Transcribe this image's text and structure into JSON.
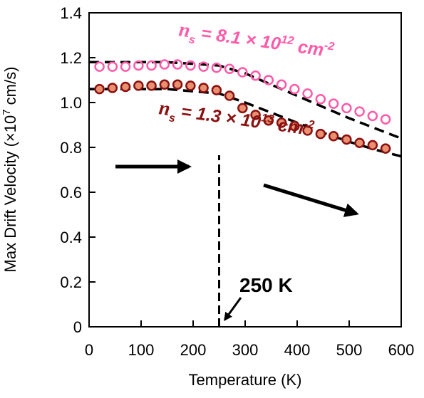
{
  "chart_data": {
    "type": "scatter",
    "xlabel": "Temperature (K)",
    "ylabel": [
      "Max Drift Velocity (×10",
      "7",
      " cm/s)"
    ],
    "xlim": [
      0,
      600
    ],
    "xticks": [
      0,
      100,
      200,
      300,
      400,
      500,
      600
    ],
    "ylim": [
      0,
      1.4
    ],
    "yticks": [
      0,
      0.2,
      0.4,
      0.6,
      0.8,
      {
        "value": 1,
        "label": "1.0"
      },
      1.2,
      1.4
    ],
    "series": [
      {
        "name": [
          "n",
          "s",
          " = 8.1 × 10",
          "12",
          " cm",
          "-2"
        ],
        "color": "#ff5aa8",
        "fill": "none",
        "x": [
          20,
          45,
          70,
          95,
          120,
          145,
          170,
          195,
          220,
          245,
          270,
          295,
          320,
          345,
          370,
          395,
          420,
          445,
          470,
          495,
          520,
          545,
          570
        ],
        "values": [
          1.16,
          1.16,
          1.16,
          1.165,
          1.165,
          1.17,
          1.17,
          1.165,
          1.16,
          1.155,
          1.15,
          1.135,
          1.12,
          1.1,
          1.08,
          1.06,
          1.04,
          1.015,
          0.995,
          0.975,
          0.96,
          0.94,
          0.925
        ]
      },
      {
        "name": [
          "n",
          "s",
          " = 1.3 × 10",
          "13",
          " cm",
          "-2"
        ],
        "color": "#8b1010",
        "fill": "#e89070",
        "x": [
          20,
          45,
          70,
          95,
          120,
          145,
          170,
          195,
          220,
          245,
          270,
          295,
          320,
          345,
          370,
          395,
          420,
          445,
          470,
          495,
          520,
          545,
          570
        ],
        "values": [
          1.06,
          1.065,
          1.07,
          1.075,
          1.075,
          1.08,
          1.08,
          1.075,
          1.065,
          1.055,
          1.03,
          0.975,
          0.945,
          0.92,
          0.91,
          0.895,
          0.875,
          0.86,
          0.85,
          0.835,
          0.82,
          0.81,
          0.795
        ]
      }
    ],
    "fit_lines": [
      {
        "x": [
          0,
          150,
          250,
          300,
          350,
          400,
          450,
          500,
          550,
          600
        ],
        "values": [
          1.18,
          1.18,
          1.165,
          1.13,
          1.08,
          1.03,
          0.98,
          0.93,
          0.885,
          0.84
        ]
      },
      {
        "x": [
          0,
          150,
          250,
          300,
          350,
          400,
          450,
          500,
          550,
          600
        ],
        "values": [
          1.06,
          1.06,
          1.04,
          1.0,
          0.955,
          0.91,
          0.865,
          0.825,
          0.79,
          0.76
        ]
      }
    ],
    "marker": {
      "x": 250,
      "label": "250 K"
    }
  }
}
